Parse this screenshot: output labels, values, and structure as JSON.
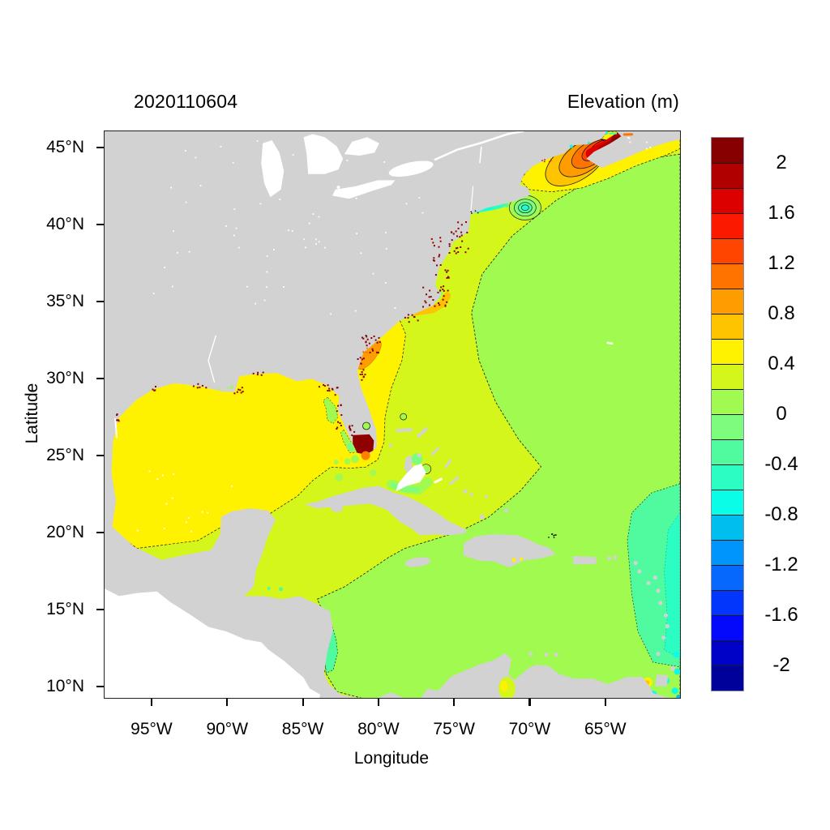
{
  "header": {
    "date_label": "2020110604",
    "title": "Elevation (m)"
  },
  "axes": {
    "x_label": "Longitude",
    "y_label": "Latitude",
    "x_ticks": [
      {
        "value": -95,
        "label": "95°W"
      },
      {
        "value": -90,
        "label": "90°W"
      },
      {
        "value": -85,
        "label": "85°W"
      },
      {
        "value": -80,
        "label": "80°W"
      },
      {
        "value": -75,
        "label": "75°W"
      },
      {
        "value": -70,
        "label": "70°W"
      },
      {
        "value": -65,
        "label": "65°W"
      }
    ],
    "y_ticks": [
      {
        "value": 45,
        "label": "45°N"
      },
      {
        "value": 40,
        "label": "40°N"
      },
      {
        "value": 35,
        "label": "35°N"
      },
      {
        "value": 30,
        "label": "30°N"
      },
      {
        "value": 25,
        "label": "25°N"
      },
      {
        "value": 20,
        "label": "20°N"
      },
      {
        "value": 15,
        "label": "15°N"
      },
      {
        "value": 10,
        "label": "10°N"
      }
    ]
  },
  "colorbar": {
    "units": "m",
    "max": 2.2,
    "min": -2.2,
    "step": 0.2,
    "tick_labels": [
      "2",
      "1.6",
      "1.2",
      "0.8",
      "0.4",
      "0",
      "-0.4",
      "-0.8",
      "-1.2",
      "-1.6",
      "-2"
    ],
    "colors_top_to_bottom": [
      "#870000",
      "#B00000",
      "#DC0000",
      "#FB1A00",
      "#FF4500",
      "#FF7300",
      "#FF9D00",
      "#FFC400",
      "#FFF200",
      "#D5F61A",
      "#A0FA4F",
      "#7DFC7D",
      "#4FFB9E",
      "#2BFDC3",
      "#0AFDE6",
      "#00BFEF",
      "#0095FB",
      "#0668FC",
      "#0336FC",
      "#0409FC",
      "#0002C8",
      "#00009B"
    ]
  },
  "chart_data": {
    "type": "heatmap",
    "subtype": "filled-contour-geographic-map",
    "title": "Elevation (m)",
    "timestamp_label": "2020110604",
    "xlabel": "Longitude",
    "ylabel": "Latitude",
    "xlim_deg_east": [
      -98.2,
      -60.1
    ],
    "ylim_deg_north": [
      9.3,
      46.1
    ],
    "x_tick_values": [
      -95,
      -90,
      -85,
      -80,
      -75,
      -70,
      -65
    ],
    "x_tick_labels": [
      "95°W",
      "90°W",
      "85°W",
      "80°W",
      "75°W",
      "70°W",
      "65°W"
    ],
    "y_tick_values": [
      45,
      40,
      35,
      30,
      25,
      20,
      15,
      10
    ],
    "y_tick_labels": [
      "45°N",
      "40°N",
      "35°N",
      "30°N",
      "25°N",
      "20°N",
      "15°N",
      "10°N"
    ],
    "colorbar_levels": [
      2.2,
      2.0,
      1.8,
      1.6,
      1.4,
      1.2,
      1.0,
      0.8,
      0.6,
      0.4,
      0.2,
      0.0,
      -0.2,
      -0.4,
      -0.6,
      -0.8,
      -1.0,
      -1.2,
      -1.4,
      -1.6,
      -1.8,
      -2.0,
      -2.2
    ],
    "colorbar_tick_labels": [
      "2",
      "1.6",
      "1.2",
      "0.8",
      "0.4",
      "0",
      "-0.4",
      "-0.8",
      "-1.2",
      "-1.6",
      "-2"
    ],
    "palette_top_to_bottom": [
      "#870000",
      "#B00000",
      "#DC0000",
      "#FB1A00",
      "#FF4500",
      "#FF7300",
      "#FF9D00",
      "#FFC400",
      "#FFF200",
      "#D5F61A",
      "#A0FA4F",
      "#7DFC7D",
      "#4FFB9E",
      "#2BFDC3",
      "#0AFDE6",
      "#00BFEF",
      "#0095FB",
      "#0668FC",
      "#0336FC",
      "#0409FC",
      "#0002C8",
      "#00009B"
    ],
    "land_color": "#D2D2D2",
    "lake_color": "#FFFFFF",
    "outside_domain_color": "#FFFFFF",
    "contour_line_color": "#1a1a1a",
    "regions": [
      {
        "name": "Gulf of Mexico",
        "elevation_m": 0.5
      },
      {
        "name": "Western Atlantic coastal band (US east coast)",
        "elevation_m": 0.3
      },
      {
        "name": "Central Atlantic interior and Caribbean Sea",
        "elevation_m": 0.1
      },
      {
        "name": "Bay of Fundy / Gulf of Maine maximum with concentric contours",
        "elevation_m": 2.2
      },
      {
        "name": "Nantucket Shoals low (concentric rings)",
        "elevation_m": -0.7
      },
      {
        "name": "Georgia / South Carolina shelf band",
        "elevation_m": 0.9
      },
      {
        "name": "Cape Hatteras nearshore patch",
        "elevation_m": 0.7
      },
      {
        "name": "South Florida / Everglades flooded cells (speckled)",
        "elevation_m": 2.2
      },
      {
        "name": "Chesapeake Bay",
        "elevation_m": -0.3
      },
      {
        "name": "Long Island Sound",
        "elevation_m": -0.6
      },
      {
        "name": "West Florida shelf patches",
        "elevation_m": 0.1
      },
      {
        "name": "Bahama Banks patches",
        "elevation_m": -0.1
      },
      {
        "name": "Nicaragua coastal strip",
        "elevation_m": -0.3
      },
      {
        "name": "Lesser Antilles arc strip",
        "elevation_m": -0.3
      },
      {
        "name": "Eastern domain edge strip",
        "elevation_m": -0.5
      },
      {
        "name": "Coastal estuary speckles NJ-NC / GA / FL / LA",
        "elevation_m": 2.2
      }
    ]
  }
}
